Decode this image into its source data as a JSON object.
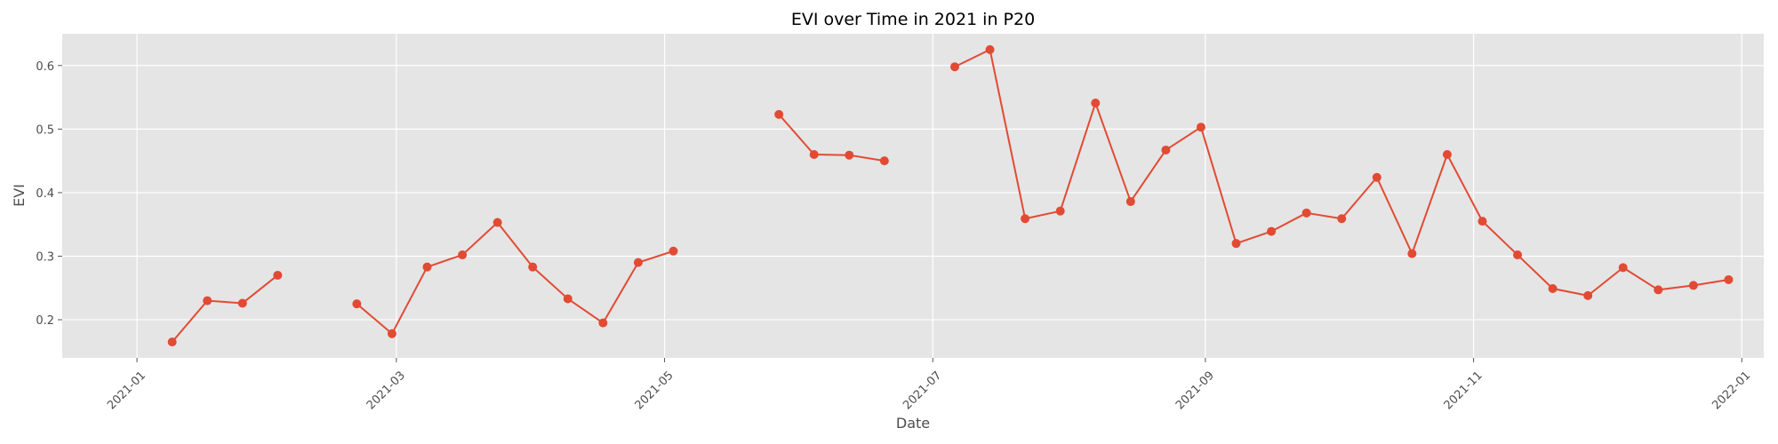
{
  "chart_data": {
    "type": "line",
    "title": "EVI over Time in 2021 in P20",
    "xlabel": "Date",
    "ylabel": "EVI",
    "xlim": [
      "2020-12-15",
      "2022-01-06"
    ],
    "ylim": [
      0.14,
      0.65
    ],
    "x_ticks": [
      "2021-01",
      "2021-03",
      "2021-05",
      "2021-07",
      "2021-09",
      "2021-11",
      "2022-01"
    ],
    "y_ticks": [
      "0.2",
      "0.3",
      "0.4",
      "0.5",
      "0.6"
    ],
    "grid": true,
    "series_color": "#E24A33",
    "background_color": "#E5E5E5",
    "series": [
      {
        "segments": [
          [
            {
              "x": "2021-01-09",
              "y": 0.165
            },
            {
              "x": "2021-01-17",
              "y": 0.23
            },
            {
              "x": "2021-01-25",
              "y": 0.226
            },
            {
              "x": "2021-02-02",
              "y": 0.27
            }
          ],
          [
            {
              "x": "2021-02-20",
              "y": 0.225
            },
            {
              "x": "2021-02-28",
              "y": 0.178
            },
            {
              "x": "2021-03-08",
              "y": 0.283
            },
            {
              "x": "2021-03-16",
              "y": 0.302
            },
            {
              "x": "2021-03-24",
              "y": 0.353
            },
            {
              "x": "2021-04-01",
              "y": 0.283
            },
            {
              "x": "2021-04-09",
              "y": 0.233
            },
            {
              "x": "2021-04-17",
              "y": 0.195
            },
            {
              "x": "2021-04-25",
              "y": 0.29
            },
            {
              "x": "2021-05-03",
              "y": 0.308
            }
          ],
          [
            {
              "x": "2021-05-27",
              "y": 0.523
            },
            {
              "x": "2021-06-04",
              "y": 0.46
            },
            {
              "x": "2021-06-12",
              "y": 0.459
            },
            {
              "x": "2021-06-20",
              "y": 0.45
            }
          ],
          [
            {
              "x": "2021-07-06",
              "y": 0.598
            },
            {
              "x": "2021-07-14",
              "y": 0.625
            },
            {
              "x": "2021-07-22",
              "y": 0.359
            },
            {
              "x": "2021-07-30",
              "y": 0.371
            },
            {
              "x": "2021-08-07",
              "y": 0.541
            },
            {
              "x": "2021-08-15",
              "y": 0.386
            },
            {
              "x": "2021-08-23",
              "y": 0.467
            },
            {
              "x": "2021-08-31",
              "y": 0.503
            },
            {
              "x": "2021-09-08",
              "y": 0.32
            },
            {
              "x": "2021-09-16",
              "y": 0.339
            },
            {
              "x": "2021-09-24",
              "y": 0.368
            },
            {
              "x": "2021-10-02",
              "y": 0.359
            },
            {
              "x": "2021-10-10",
              "y": 0.424
            },
            {
              "x": "2021-10-18",
              "y": 0.304
            },
            {
              "x": "2021-10-26",
              "y": 0.46
            },
            {
              "x": "2021-11-03",
              "y": 0.355
            },
            {
              "x": "2021-11-11",
              "y": 0.302
            },
            {
              "x": "2021-11-19",
              "y": 0.249
            },
            {
              "x": "2021-11-27",
              "y": 0.238
            },
            {
              "x": "2021-12-05",
              "y": 0.282
            },
            {
              "x": "2021-12-13",
              "y": 0.247
            },
            {
              "x": "2021-12-21",
              "y": 0.254
            },
            {
              "x": "2021-12-29",
              "y": 0.263
            }
          ]
        ]
      }
    ]
  }
}
